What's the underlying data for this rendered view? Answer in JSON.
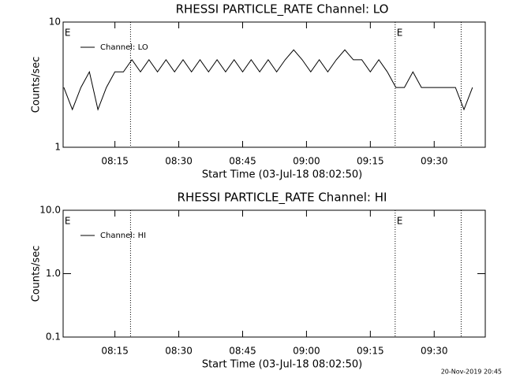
{
  "chart_data": [
    {
      "type": "line",
      "title": "RHESSI PARTICLE_RATE Channel: LO",
      "xlabel": "Start Time (03-Jul-18 08:02:50)",
      "ylabel": "Counts/sec",
      "log_y": true,
      "ylim": [
        1,
        10
      ],
      "yticks": [
        1,
        10
      ],
      "xlim": [
        "08:02:50",
        "09:42"
      ],
      "xticks": [
        "08:15",
        "08:30",
        "08:45",
        "09:00",
        "09:15",
        "09:30"
      ],
      "legend": "upper left",
      "x": [
        "08:03",
        "08:05",
        "08:07",
        "08:09",
        "08:11",
        "08:13",
        "08:15",
        "08:17",
        "08:19",
        "08:21",
        "08:23",
        "08:25",
        "08:27",
        "08:29",
        "08:31",
        "08:33",
        "08:35",
        "08:37",
        "08:39",
        "08:41",
        "08:43",
        "08:45",
        "08:47",
        "08:49",
        "08:51",
        "08:53",
        "08:55",
        "08:57",
        "08:59",
        "09:01",
        "09:03",
        "09:05",
        "09:07",
        "09:09",
        "09:11",
        "09:13",
        "09:15",
        "09:17",
        "09:19",
        "09:21",
        "09:23",
        "09:25",
        "09:27",
        "09:29",
        "09:31",
        "09:33",
        "09:35",
        "09:37",
        "09:39"
      ],
      "series": [
        {
          "name": "Channel: LO",
          "color": "#000000",
          "values": [
            3,
            2,
            3,
            4,
            2,
            3,
            4,
            4,
            5,
            4,
            5,
            4,
            5,
            4,
            5,
            4,
            5,
            4,
            5,
            4,
            5,
            4,
            5,
            4,
            5,
            4,
            5,
            6,
            5,
            4,
            5,
            4,
            5,
            6,
            5,
            5,
            4,
            5,
            4,
            3,
            3,
            4,
            3,
            3,
            3,
            3,
            3,
            2,
            3
          ]
        }
      ],
      "vlines": [
        "08:18:40",
        "09:20:50",
        "09:36:20"
      ],
      "annotations": [
        {
          "text": "E",
          "x": "08:03"
        },
        {
          "text": "E",
          "x": "09:21"
        }
      ]
    },
    {
      "type": "line",
      "title": "RHESSI PARTICLE_RATE Channel: HI",
      "xlabel": "Start Time (03-Jul-18 08:02:50)",
      "ylabel": "Counts/sec",
      "log_y": true,
      "ylim": [
        0.1,
        10
      ],
      "yticks": [
        0.1,
        {
          "value": 1,
          "label": "1.0"
        },
        {
          "value": 10,
          "label": "10.0"
        }
      ],
      "xlim": [
        "08:02:50",
        "09:42"
      ],
      "xticks": [
        "08:15",
        "08:30",
        "08:45",
        "09:00",
        "09:15",
        "09:30"
      ],
      "legend": "upper left",
      "x": [],
      "series": [
        {
          "name": "Channel: HI",
          "color": "#000000",
          "values": []
        }
      ],
      "vlines": [
        "08:18:40",
        "09:20:50",
        "09:36:20"
      ],
      "annotations": [
        {
          "text": "E",
          "x": "08:03"
        },
        {
          "text": "E",
          "x": "09:21"
        }
      ]
    }
  ],
  "footer": "20-Nov-2019 20:45"
}
